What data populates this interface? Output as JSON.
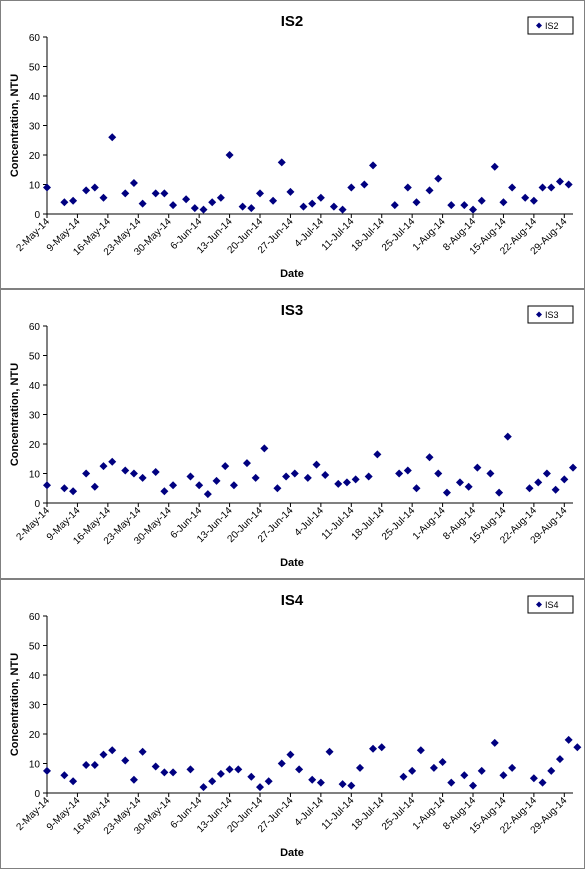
{
  "chart_data": [
    {
      "type": "scatter",
      "title": "IS2",
      "xlabel": "Date",
      "ylabel": "Concentration, NTU",
      "legend": "IS2",
      "legend_position": "top-right",
      "ylim": [
        0,
        60
      ],
      "yticks": [
        0,
        10,
        20,
        30,
        40,
        50,
        60
      ],
      "xticks": [
        "2-May-14",
        "9-May-14",
        "16-May-14",
        "23-May-14",
        "30-May-14",
        "6-Jun-14",
        "13-Jun-14",
        "20-Jun-14",
        "27-Jun-14",
        "4-Jul-14",
        "11-Jul-14",
        "18-Jul-14",
        "25-Jul-14",
        "1-Aug-14",
        "8-Aug-14",
        "15-Aug-14",
        "22-Aug-14",
        "29-Aug-14"
      ],
      "xlim": [
        "2-May-14",
        "31-Aug-14"
      ],
      "marker_color": "#000080",
      "series": [
        {
          "name": "IS2",
          "points": [
            [
              "2-May-14",
              9
            ],
            [
              "6-May-14",
              4
            ],
            [
              "8-May-14",
              4.5
            ],
            [
              "11-May-14",
              8
            ],
            [
              "13-May-14",
              9
            ],
            [
              "15-May-14",
              5.5
            ],
            [
              "17-May-14",
              26
            ],
            [
              "20-May-14",
              7
            ],
            [
              "22-May-14",
              10.5
            ],
            [
              "24-May-14",
              3.5
            ],
            [
              "27-May-14",
              7
            ],
            [
              "29-May-14",
              7
            ],
            [
              "31-May-14",
              3
            ],
            [
              "3-Jun-14",
              5
            ],
            [
              "5-Jun-14",
              2
            ],
            [
              "7-Jun-14",
              1.5
            ],
            [
              "9-Jun-14",
              4
            ],
            [
              "11-Jun-14",
              5.5
            ],
            [
              "13-Jun-14",
              20
            ],
            [
              "16-Jun-14",
              2.5
            ],
            [
              "18-Jun-14",
              2
            ],
            [
              "20-Jun-14",
              7
            ],
            [
              "23-Jun-14",
              4.5
            ],
            [
              "25-Jun-14",
              17.5
            ],
            [
              "27-Jun-14",
              7.5
            ],
            [
              "30-Jun-14",
              2.5
            ],
            [
              "2-Jul-14",
              3.5
            ],
            [
              "4-Jul-14",
              5.5
            ],
            [
              "7-Jul-14",
              2.5
            ],
            [
              "9-Jul-14",
              1.5
            ],
            [
              "11-Jul-14",
              9
            ],
            [
              "14-Jul-14",
              10
            ],
            [
              "16-Jul-14",
              16.5
            ],
            [
              "21-Jul-14",
              3
            ],
            [
              "24-Jul-14",
              9
            ],
            [
              "26-Jul-14",
              4
            ],
            [
              "29-Jul-14",
              8
            ],
            [
              "31-Jul-14",
              12
            ],
            [
              "3-Aug-14",
              3
            ],
            [
              "6-Aug-14",
              3
            ],
            [
              "8-Aug-14",
              1.5
            ],
            [
              "10-Aug-14",
              4.5
            ],
            [
              "13-Aug-14",
              16
            ],
            [
              "15-Aug-14",
              4
            ],
            [
              "17-Aug-14",
              9
            ],
            [
              "20-Aug-14",
              5.5
            ],
            [
              "22-Aug-14",
              4.5
            ],
            [
              "24-Aug-14",
              9
            ],
            [
              "26-Aug-14",
              9
            ],
            [
              "28-Aug-14",
              11
            ],
            [
              "30-Aug-14",
              10
            ]
          ]
        }
      ]
    },
    {
      "type": "scatter",
      "title": "IS3",
      "xlabel": "Date",
      "ylabel": "Concentration, NTU",
      "legend": "IS3",
      "legend_position": "top-right",
      "ylim": [
        0,
        60
      ],
      "yticks": [
        0,
        10,
        20,
        30,
        40,
        50,
        60
      ],
      "xticks": [
        "2-May-14",
        "9-May-14",
        "16-May-14",
        "23-May-14",
        "30-May-14",
        "6-Jun-14",
        "13-Jun-14",
        "20-Jun-14",
        "27-Jun-14",
        "4-Jul-14",
        "11-Jul-14",
        "18-Jul-14",
        "25-Jul-14",
        "1-Aug-14",
        "8-Aug-14",
        "15-Aug-14",
        "22-Aug-14",
        "29-Aug-14"
      ],
      "xlim": [
        "2-May-14",
        "31-Aug-14"
      ],
      "marker_color": "#000080",
      "series": [
        {
          "name": "IS3",
          "points": [
            [
              "2-May-14",
              6
            ],
            [
              "6-May-14",
              5
            ],
            [
              "8-May-14",
              4
            ],
            [
              "11-May-14",
              10
            ],
            [
              "13-May-14",
              5.5
            ],
            [
              "15-May-14",
              12.5
            ],
            [
              "17-May-14",
              14
            ],
            [
              "20-May-14",
              11
            ],
            [
              "22-May-14",
              10
            ],
            [
              "24-May-14",
              8.5
            ],
            [
              "27-May-14",
              10.5
            ],
            [
              "29-May-14",
              4
            ],
            [
              "31-May-14",
              6
            ],
            [
              "4-Jun-14",
              9
            ],
            [
              "6-Jun-14",
              6
            ],
            [
              "8-Jun-14",
              3
            ],
            [
              "10-Jun-14",
              7.5
            ],
            [
              "12-Jun-14",
              12.5
            ],
            [
              "14-Jun-14",
              6
            ],
            [
              "17-Jun-14",
              13.5
            ],
            [
              "19-Jun-14",
              8.5
            ],
            [
              "21-Jun-14",
              18.5
            ],
            [
              "24-Jun-14",
              5
            ],
            [
              "26-Jun-14",
              9
            ],
            [
              "28-Jun-14",
              10
            ],
            [
              "1-Jul-14",
              8.5
            ],
            [
              "3-Jul-14",
              13
            ],
            [
              "5-Jul-14",
              9.5
            ],
            [
              "8-Jul-14",
              6.5
            ],
            [
              "10-Jul-14",
              7
            ],
            [
              "12-Jul-14",
              8
            ],
            [
              "15-Jul-14",
              9
            ],
            [
              "17-Jul-14",
              16.5
            ],
            [
              "22-Jul-14",
              10
            ],
            [
              "24-Jul-14",
              11
            ],
            [
              "26-Jul-14",
              5
            ],
            [
              "29-Jul-14",
              15.5
            ],
            [
              "31-Jul-14",
              10
            ],
            [
              "2-Aug-14",
              3.5
            ],
            [
              "5-Aug-14",
              7
            ],
            [
              "7-Aug-14",
              5.5
            ],
            [
              "9-Aug-14",
              12
            ],
            [
              "12-Aug-14",
              10
            ],
            [
              "14-Aug-14",
              3.5
            ],
            [
              "16-Aug-14",
              22.5
            ],
            [
              "21-Aug-14",
              5
            ],
            [
              "23-Aug-14",
              7
            ],
            [
              "25-Aug-14",
              10
            ],
            [
              "27-Aug-14",
              4.5
            ],
            [
              "29-Aug-14",
              8
            ],
            [
              "31-Aug-14",
              12
            ]
          ]
        }
      ]
    },
    {
      "type": "scatter",
      "title": "IS4",
      "xlabel": "Date",
      "ylabel": "Concentration, NTU",
      "legend": "IS4",
      "legend_position": "top-right",
      "ylim": [
        0,
        60
      ],
      "yticks": [
        0,
        10,
        20,
        30,
        40,
        50,
        60
      ],
      "xticks": [
        "2-May-14",
        "9-May-14",
        "16-May-14",
        "23-May-14",
        "30-May-14",
        "6-Jun-14",
        "13-Jun-14",
        "20-Jun-14",
        "27-Jun-14",
        "4-Jul-14",
        "11-Jul-14",
        "18-Jul-14",
        "25-Jul-14",
        "1-Aug-14",
        "8-Aug-14",
        "15-Aug-14",
        "22-Aug-14",
        "29-Aug-14"
      ],
      "xlim": [
        "2-May-14",
        "31-Aug-14"
      ],
      "marker_color": "#000080",
      "series": [
        {
          "name": "IS4",
          "points": [
            [
              "2-May-14",
              7.5
            ],
            [
              "6-May-14",
              6
            ],
            [
              "8-May-14",
              4
            ],
            [
              "11-May-14",
              9.5
            ],
            [
              "13-May-14",
              9.5
            ],
            [
              "15-May-14",
              13
            ],
            [
              "17-May-14",
              14.5
            ],
            [
              "20-May-14",
              11
            ],
            [
              "22-May-14",
              4.5
            ],
            [
              "24-May-14",
              14
            ],
            [
              "27-May-14",
              9
            ],
            [
              "29-May-14",
              7
            ],
            [
              "31-May-14",
              7
            ],
            [
              "4-Jun-14",
              8
            ],
            [
              "7-Jun-14",
              2
            ],
            [
              "9-Jun-14",
              4
            ],
            [
              "11-Jun-14",
              6.5
            ],
            [
              "13-Jun-14",
              8
            ],
            [
              "15-Jun-14",
              8
            ],
            [
              "18-Jun-14",
              5.5
            ],
            [
              "20-Jun-14",
              2
            ],
            [
              "22-Jun-14",
              4
            ],
            [
              "25-Jun-14",
              10
            ],
            [
              "27-Jun-14",
              13
            ],
            [
              "29-Jun-14",
              8
            ],
            [
              "2-Jul-14",
              4.5
            ],
            [
              "4-Jul-14",
              3.5
            ],
            [
              "6-Jul-14",
              14
            ],
            [
              "9-Jul-14",
              3
            ],
            [
              "11-Jul-14",
              2.5
            ],
            [
              "13-Jul-14",
              8.5
            ],
            [
              "16-Jul-14",
              15
            ],
            [
              "18-Jul-14",
              15.5
            ],
            [
              "23-Jul-14",
              5.5
            ],
            [
              "25-Jul-14",
              7.5
            ],
            [
              "27-Jul-14",
              14.5
            ],
            [
              "30-Jul-14",
              8.5
            ],
            [
              "1-Aug-14",
              10.5
            ],
            [
              "3-Aug-14",
              3.5
            ],
            [
              "6-Aug-14",
              6
            ],
            [
              "8-Aug-14",
              2.5
            ],
            [
              "10-Aug-14",
              7.5
            ],
            [
              "13-Aug-14",
              17
            ],
            [
              "15-Aug-14",
              6
            ],
            [
              "17-Aug-14",
              8.5
            ],
            [
              "22-Aug-14",
              5
            ],
            [
              "24-Aug-14",
              3.5
            ],
            [
              "26-Aug-14",
              7.5
            ],
            [
              "28-Aug-14",
              11.5
            ],
            [
              "30-Aug-14",
              18
            ],
            [
              "1-Sep-14",
              15.5
            ]
          ]
        }
      ]
    }
  ]
}
